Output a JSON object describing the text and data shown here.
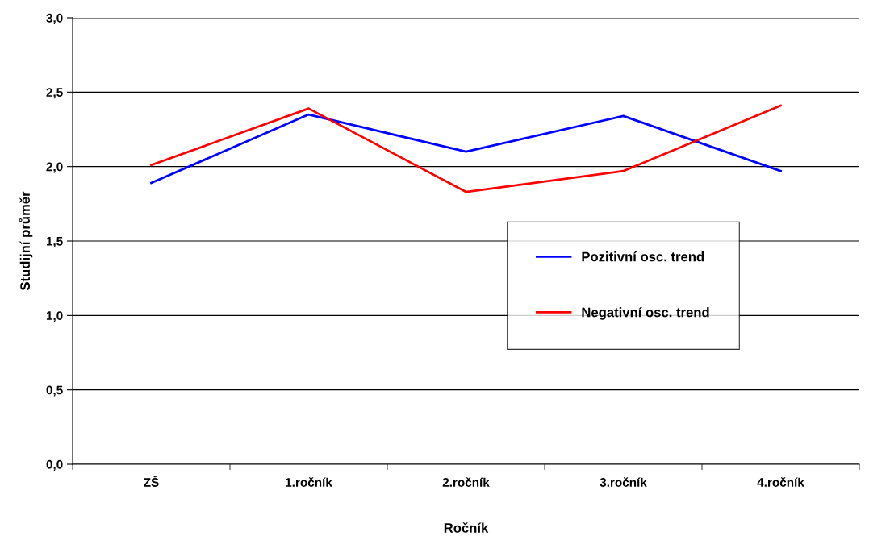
{
  "chart_data": {
    "type": "line",
    "xlabel": "Ročník",
    "ylabel": "Studijní průměr",
    "categories": [
      "ZŠ",
      "1.ročník",
      "2.ročník",
      "3.ročník",
      "4.ročník"
    ],
    "series": [
      {
        "name": "Pozitivní osc. trend",
        "color": "#0000ff",
        "values": [
          1.89,
          2.35,
          2.1,
          2.34,
          1.97
        ]
      },
      {
        "name": "Negativní osc. trend",
        "color": "#ff0000",
        "values": [
          2.01,
          2.39,
          1.83,
          1.97,
          2.41
        ]
      }
    ],
    "ylim": [
      0,
      3
    ],
    "yticks": [
      {
        "value": 0,
        "label": "0,0"
      },
      {
        "value": 0.5,
        "label": "0,5"
      },
      {
        "value": 1,
        "label": "1,0"
      },
      {
        "value": 1.5,
        "label": "1,5"
      },
      {
        "value": 2,
        "label": "2,0"
      },
      {
        "value": 2.5,
        "label": "2,5"
      },
      {
        "value": 3,
        "label": "3,0"
      }
    ],
    "grid": "y",
    "legend": "center",
    "marker": "none",
    "line_style": "solid"
  }
}
